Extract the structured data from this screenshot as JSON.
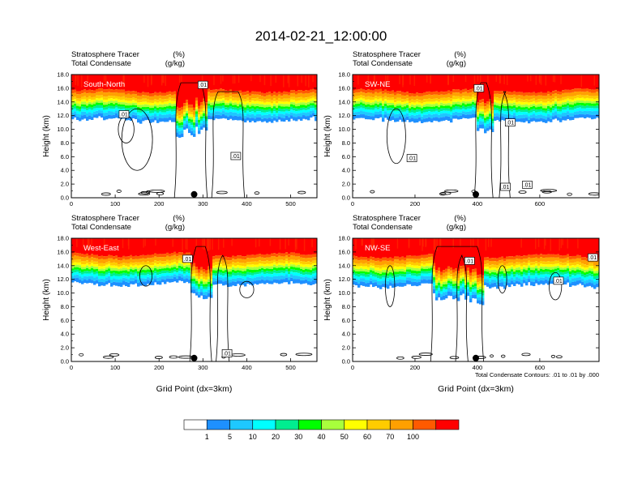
{
  "figure": {
    "title": "2014-02-21_12:00:00",
    "contour_note": "Total Condensate Contours: .01 to .01 by .000",
    "contour_label": ".01",
    "colorbar": {
      "colors": [
        "#ffffff",
        "#1e90ff",
        "#1ec8ff",
        "#00ffff",
        "#00ee90",
        "#00ff00",
        "#a8ff3c",
        "#ffff00",
        "#ffcc00",
        "#ffa000",
        "#ff5a00",
        "#ff0000"
      ],
      "labels": [
        "1",
        "5",
        "10",
        "20",
        "30",
        "40",
        "50",
        "60",
        "70",
        "100"
      ]
    }
  },
  "chart_data": [
    {
      "type": "heatmap",
      "panel_label": "South-North",
      "subtitle_left": [
        "Stratosphere Tracer",
        "Total Condensate"
      ],
      "subtitle_right": [
        "(%)",
        "(g/kg)"
      ],
      "ylabel": "Height (km)",
      "xlabel": "",
      "xlim": [
        0,
        560
      ],
      "ylim": [
        0,
        18
      ],
      "xticks": [
        "0",
        "100",
        "200",
        "300",
        "400",
        "500"
      ],
      "yticks": [
        "0.0",
        "2.0",
        "4.0",
        "6.0",
        "8.0",
        "10.0",
        "12.0",
        "14.0",
        "16.0",
        "18.0"
      ],
      "tropopause_km": 15.0,
      "marker_x": 280
    },
    {
      "type": "heatmap",
      "panel_label": "SW-NE",
      "subtitle_left": [
        "Stratosphere Tracer",
        "Total Condensate"
      ],
      "subtitle_right": [
        "(%)",
        "(g/kg)"
      ],
      "ylabel": "Height (km)",
      "xlabel": "",
      "xlim": [
        0,
        790
      ],
      "ylim": [
        0,
        18
      ],
      "xticks": [
        "0",
        "200",
        "400",
        "600"
      ],
      "yticks": [
        "0.0",
        "2.0",
        "4.0",
        "6.0",
        "8.0",
        "10.0",
        "12.0",
        "14.0",
        "16.0",
        "18.0"
      ],
      "tropopause_km": 15.0,
      "marker_x": 395
    },
    {
      "type": "heatmap",
      "panel_label": "West-East",
      "subtitle_left": [
        "Stratosphere Tracer",
        "Total Condensate"
      ],
      "subtitle_right": [
        "(%)",
        "(g/kg)"
      ],
      "ylabel": "Height (km)",
      "xlabel": "Grid Point (dx=3km)",
      "xlim": [
        0,
        560
      ],
      "ylim": [
        0,
        18
      ],
      "xticks": [
        "0",
        "100",
        "200",
        "300",
        "400",
        "500"
      ],
      "yticks": [
        "0.0",
        "2.0",
        "4.0",
        "6.0",
        "8.0",
        "10.0",
        "12.0",
        "14.0",
        "16.0",
        "18.0"
      ],
      "tropopause_km": 15.0,
      "marker_x": 280
    },
    {
      "type": "heatmap",
      "panel_label": "NW-SE",
      "subtitle_left": [
        "Stratosphere Tracer",
        "Total Condensate"
      ],
      "subtitle_right": [
        "(%)",
        "(g/kg)"
      ],
      "ylabel": "Height (km)",
      "xlabel": "Grid Point (dx=3km)",
      "xlim": [
        0,
        790
      ],
      "ylim": [
        0,
        18
      ],
      "xticks": [
        "0",
        "200",
        "400",
        "600"
      ],
      "yticks": [
        "0.0",
        "2.0",
        "4.0",
        "6.0",
        "8.0",
        "10.0",
        "12.0",
        "14.0",
        "16.0",
        "18.0"
      ],
      "tropopause_km": 14.8,
      "marker_x": 395
    }
  ]
}
